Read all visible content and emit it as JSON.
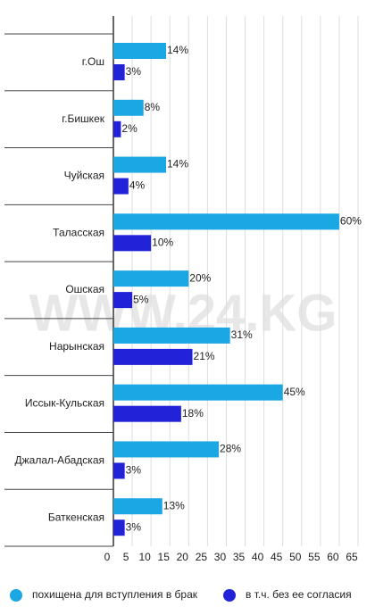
{
  "chart_data": {
    "type": "bar",
    "orientation": "horizontal",
    "watermark": "WWW.24.KG",
    "categories": [
      "г.Ош",
      "г.Бишкек",
      "Чуйская",
      "Таласская",
      "Ошская",
      "Нарынская",
      "Иссык-Кульская",
      "Джалал-Абадская",
      "Баткенская"
    ],
    "series": [
      {
        "name": "похищена для вступления в брак",
        "color": "#1ba6e4",
        "values": [
          14,
          8,
          14,
          60,
          20,
          31,
          45,
          28,
          13
        ],
        "value_labels": [
          "14%",
          "8%",
          "14%",
          "60%",
          "20%",
          "31%",
          "45%",
          "28%",
          "13%"
        ]
      },
      {
        "name": "в т.ч. без ее согласия",
        "color": "#2222d8",
        "values": [
          3,
          2,
          4,
          10,
          5,
          21,
          18,
          3,
          3
        ],
        "value_labels": [
          "3%",
          "2%",
          "4%",
          "10%",
          "5%",
          "21%",
          "18%",
          "3%",
          "3%"
        ]
      }
    ],
    "xlim": [
      0,
      65
    ],
    "xticks": [
      0,
      5,
      10,
      15,
      20,
      25,
      30,
      35,
      40,
      45,
      50,
      55,
      60,
      65
    ],
    "grid": true
  }
}
